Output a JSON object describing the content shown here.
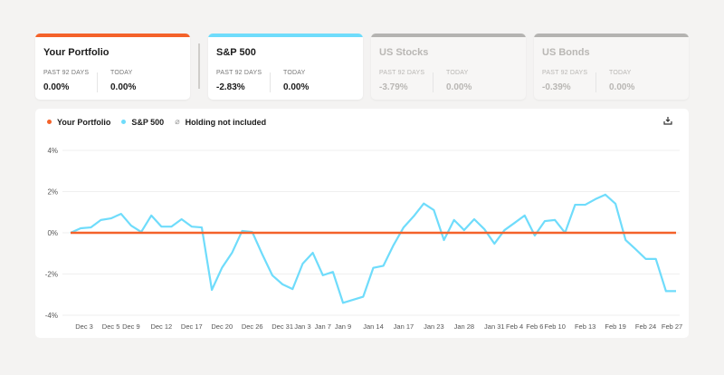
{
  "cards": [
    {
      "title": "Your Portfolio",
      "period_label": "PAST 92 DAYS",
      "period_value": "0.00%",
      "today_label": "TODAY",
      "today_value": "0.00%",
      "color": "#f4622a",
      "active": true
    },
    {
      "title": "S&P 500",
      "period_label": "PAST 92 DAYS",
      "period_value": "-2.83%",
      "today_label": "TODAY",
      "today_value": "0.00%",
      "color": "#6fdcfb",
      "active": true
    },
    {
      "title": "US Stocks",
      "period_label": "PAST 92 DAYS",
      "period_value": "-3.79%",
      "today_label": "TODAY",
      "today_value": "0.00%",
      "color": "#b4b3b1",
      "active": false
    },
    {
      "title": "US Bonds",
      "period_label": "PAST 92 DAYS",
      "period_value": "-0.39%",
      "today_label": "TODAY",
      "today_value": "0.00%",
      "color": "#b4b3b1",
      "active": false
    }
  ],
  "legend": {
    "portfolio": "Your Portfolio",
    "sp500": "S&P 500",
    "excluded": "Holding not included"
  },
  "icons": {
    "download": "download-icon",
    "excluded": "not-included-icon"
  },
  "chart_data": {
    "type": "line",
    "ylim": [
      -4,
      4
    ],
    "yticks": [
      4,
      2,
      0,
      -2,
      -4
    ],
    "ytick_labels": [
      "4%",
      "2%",
      "0%",
      "-2%",
      "-4%"
    ],
    "grid": true,
    "xticks": [
      {
        "label": "Dec 3",
        "i": 1.35
      },
      {
        "label": "Dec 5",
        "i": 4
      },
      {
        "label": "Dec 9",
        "i": 6
      },
      {
        "label": "Dec 12",
        "i": 9
      },
      {
        "label": "Dec 17",
        "i": 12
      },
      {
        "label": "Dec 20",
        "i": 15
      },
      {
        "label": "Dec 26",
        "i": 18
      },
      {
        "label": "Dec 31",
        "i": 21
      },
      {
        "label": "Jan 3",
        "i": 23
      },
      {
        "label": "Jan 7",
        "i": 25
      },
      {
        "label": "Jan 9",
        "i": 27
      },
      {
        "label": "Jan 14",
        "i": 30
      },
      {
        "label": "Jan 17",
        "i": 33
      },
      {
        "label": "Jan 23",
        "i": 36
      },
      {
        "label": "Jan 28",
        "i": 39
      },
      {
        "label": "Jan 31",
        "i": 42
      },
      {
        "label": "Feb 4",
        "i": 44
      },
      {
        "label": "Feb 6",
        "i": 46
      },
      {
        "label": "Feb 10",
        "i": 48
      },
      {
        "label": "Feb 13",
        "i": 51
      },
      {
        "label": "Feb 19",
        "i": 54
      },
      {
        "label": "Feb 24",
        "i": 57
      },
      {
        "label": "Feb 27",
        "i": 59.6
      }
    ],
    "series": [
      {
        "name": "Your Portfolio",
        "color": "#f4622a",
        "values": [
          0,
          0,
          0,
          0,
          0,
          0,
          0,
          0,
          0,
          0,
          0,
          0,
          0,
          0,
          0,
          0,
          0,
          0,
          0,
          0,
          0,
          0,
          0,
          0,
          0,
          0,
          0,
          0,
          0,
          0,
          0,
          0,
          0,
          0,
          0,
          0,
          0,
          0,
          0,
          0,
          0,
          0,
          0,
          0,
          0,
          0,
          0,
          0,
          0,
          0,
          0,
          0,
          0,
          0,
          0,
          0,
          0,
          0,
          0,
          0,
          0
        ]
      },
      {
        "name": "S&P 500",
        "color": "#6fdcfb",
        "values": [
          0,
          0.22,
          0.26,
          0.62,
          0.7,
          0.92,
          0.35,
          0.04,
          0.84,
          0.3,
          0.3,
          0.66,
          0.3,
          0.26,
          -2.77,
          -1.7,
          -0.97,
          0.09,
          0.04,
          -1.05,
          -2.07,
          -2.5,
          -2.73,
          -1.5,
          -0.97,
          -2.06,
          -1.9,
          -3.4,
          -3.25,
          -3.1,
          -1.7,
          -1.6,
          -0.6,
          0.26,
          0.8,
          1.42,
          1.1,
          -0.35,
          0.62,
          0.13,
          0.66,
          0.18,
          -0.53,
          0.13,
          0.48,
          0.84,
          -0.13,
          0.57,
          0.62,
          0,
          1.36,
          1.36,
          1.63,
          1.85,
          1.41,
          -0.35,
          -0.8,
          -1.27,
          -1.27,
          -2.83,
          -2.83
        ]
      }
    ]
  }
}
